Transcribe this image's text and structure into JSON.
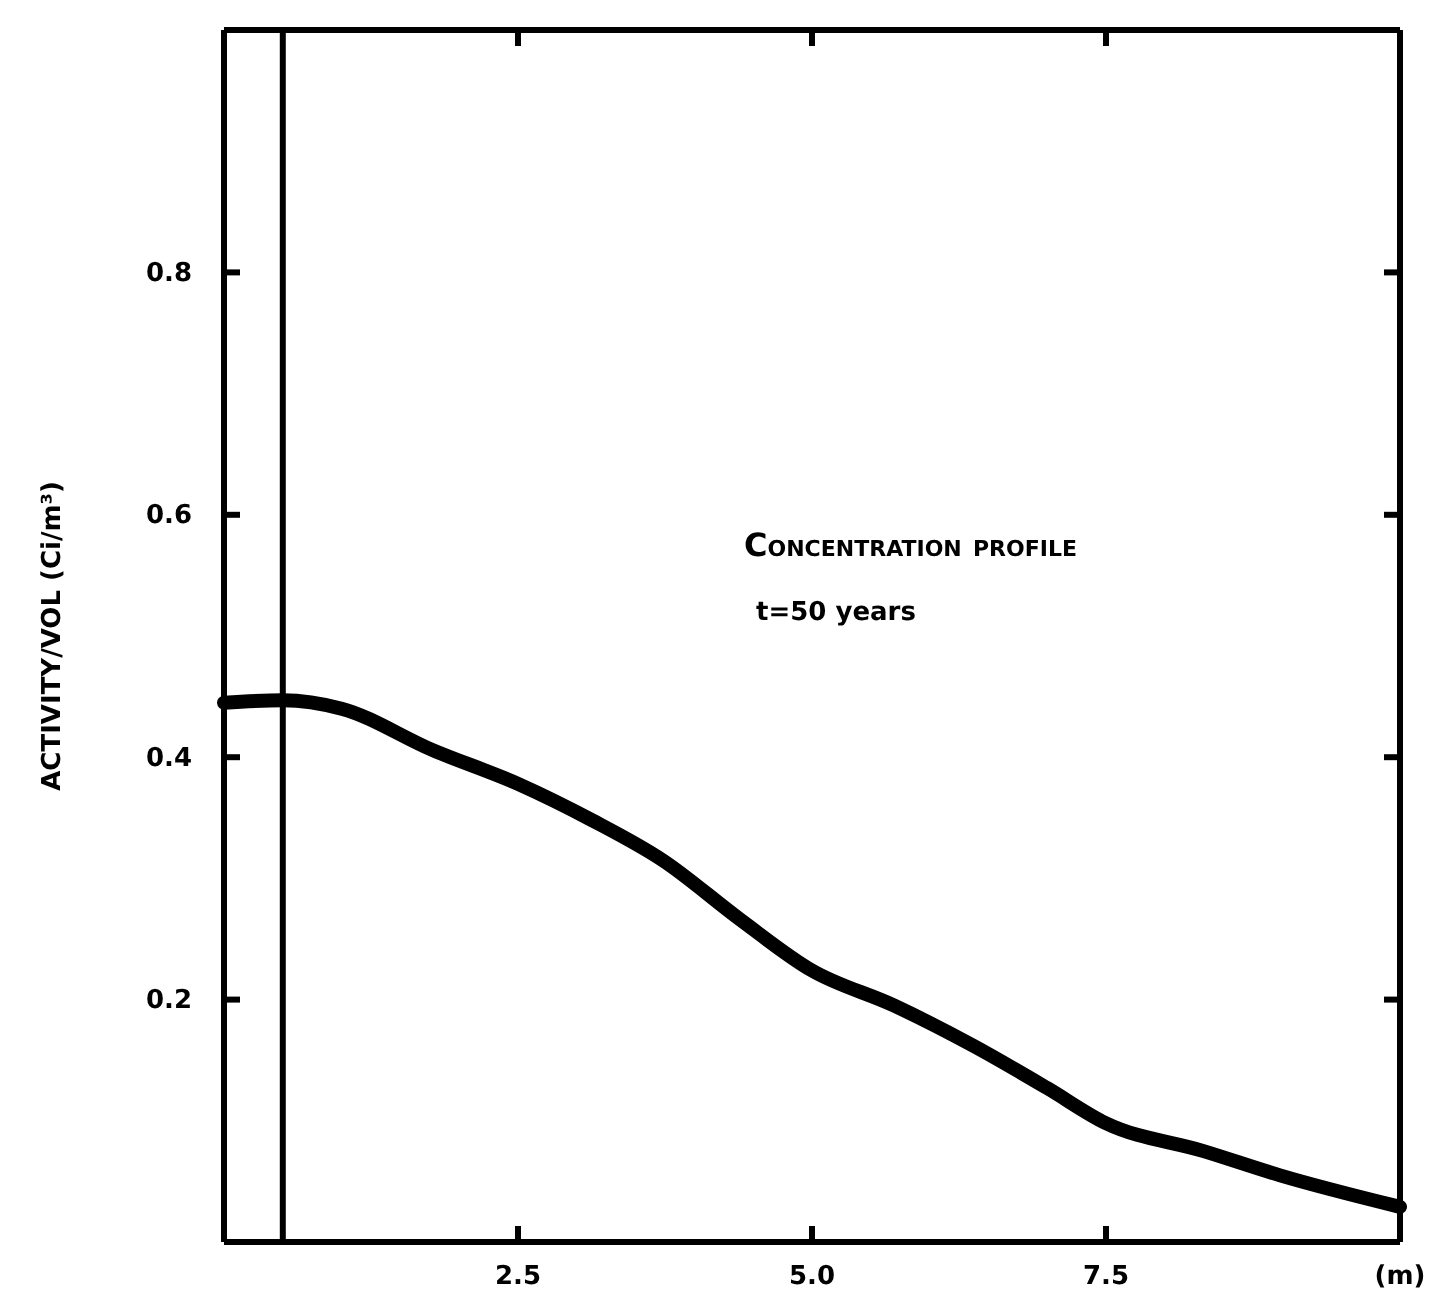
{
  "chart_data": {
    "type": "line",
    "ylabel": "ACTIVITY/VOL (Ci/m³)",
    "annotations": [
      "Concentration profile",
      "t=50 years"
    ],
    "x": [
      0,
      0.5,
      1.0,
      1.77,
      2.5,
      3.13,
      3.73,
      4.39,
      5.0,
      5.7,
      6.37,
      7.0,
      7.5,
      8.33,
      8.98,
      10
    ],
    "series": [
      {
        "color": "#000000",
        "values": [
          0.445,
          0.447,
          0.44,
          0.406,
          0.378,
          0.348,
          0.315,
          0.266,
          0.224,
          0.195,
          0.162,
          0.127,
          0.098,
          0.075,
          0.055,
          0.029
        ]
      }
    ],
    "xlim": [
      0,
      10
    ],
    "xticks": [
      {
        "value": 2.5,
        "label": "2.5"
      },
      {
        "value": 5,
        "label": "5.0"
      },
      {
        "value": 7.5,
        "label": "7.5"
      },
      {
        "value": 10,
        "label": "(m)"
      }
    ],
    "ylim": [
      0,
      1.0
    ],
    "yticks": [
      0.2,
      0.4,
      0.6,
      0.8
    ],
    "ref_lines": [
      {
        "axis": "x",
        "value": 0.5,
        "color": "#000000"
      }
    ],
    "grid": false,
    "marker": "none",
    "line_style": "solid"
  }
}
